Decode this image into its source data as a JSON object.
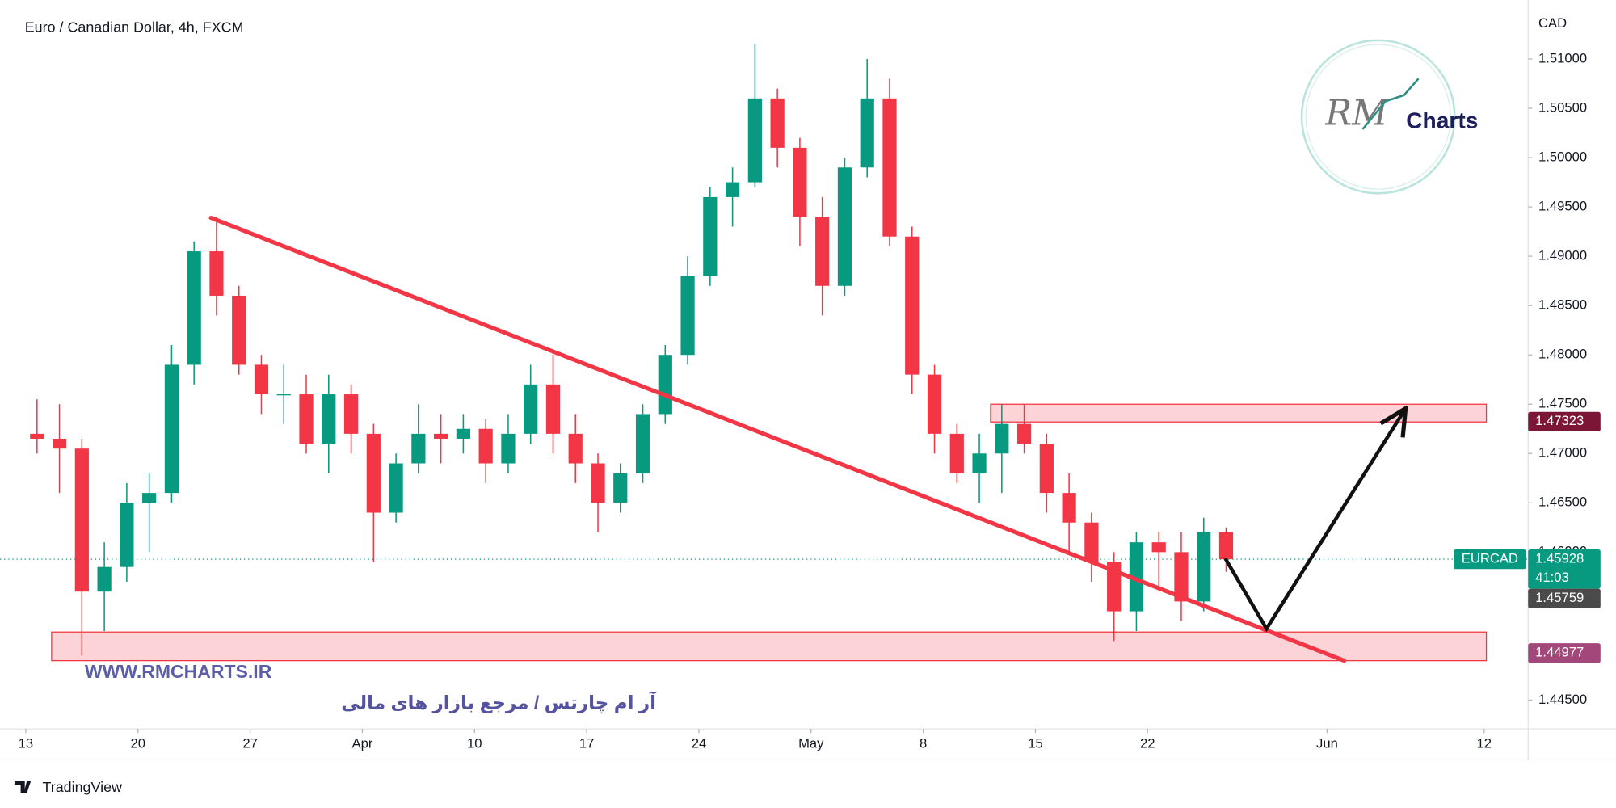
{
  "chart_data": {
    "type": "candlestick",
    "title": "Euro / Canadian Dollar, 4h, FXCM",
    "currency": "CAD",
    "up_color": "#089981",
    "down_color": "#f23645",
    "grid": false,
    "x": [
      0.5,
      1.5,
      2.5,
      3.5,
      4.5,
      5.5,
      6.5,
      7.5,
      8.5,
      9.5,
      10.5,
      11.5,
      12.5,
      13.5,
      14.5,
      15.5,
      16.5,
      17.5,
      18.5,
      19.5,
      20.5,
      21.5,
      22.5,
      23.5,
      24.5,
      25.5,
      26.5,
      27.5,
      28.5,
      29.5,
      30.5,
      31.5,
      32.5,
      33.5,
      34.5,
      35.5,
      36.5,
      37.5,
      38.5,
      39.5,
      40.5,
      41.5,
      42.5,
      43.5,
      44.5,
      45.5,
      46.5,
      47.5,
      48.5,
      49.5,
      50.5,
      51.5,
      52.5,
      53.5
    ],
    "open": [
      1.472,
      1.4715,
      1.4705,
      1.456,
      1.4585,
      1.465,
      1.466,
      1.479,
      1.4905,
      1.486,
      1.479,
      1.476,
      1.476,
      1.471,
      1.476,
      1.472,
      1.464,
      1.469,
      1.472,
      1.4715,
      1.4725,
      1.469,
      1.472,
      1.477,
      1.472,
      1.469,
      1.465,
      1.468,
      1.474,
      1.48,
      1.488,
      1.496,
      1.4975,
      1.506,
      1.501,
      1.494,
      1.487,
      1.499,
      1.506,
      1.492,
      1.478,
      1.472,
      1.468,
      1.47,
      1.473,
      1.471,
      1.466,
      1.463,
      1.459,
      1.454,
      1.461,
      1.46,
      1.455,
      1.462
    ],
    "high": [
      1.4755,
      1.475,
      1.4715,
      1.461,
      1.467,
      1.468,
      1.481,
      1.4915,
      1.494,
      1.487,
      1.48,
      1.479,
      1.478,
      1.478,
      1.477,
      1.473,
      1.47,
      1.475,
      1.474,
      1.474,
      1.4735,
      1.474,
      1.479,
      1.48,
      1.474,
      1.47,
      1.469,
      1.475,
      1.481,
      1.49,
      1.497,
      1.499,
      1.5115,
      1.507,
      1.502,
      1.496,
      1.5,
      1.51,
      1.508,
      1.493,
      1.479,
      1.473,
      1.472,
      1.475,
      1.475,
      1.472,
      1.468,
      1.464,
      1.46,
      1.462,
      1.462,
      1.462,
      1.4635,
      1.4625
    ],
    "low": [
      1.47,
      1.466,
      1.4495,
      1.452,
      1.457,
      1.46,
      1.465,
      1.477,
      1.484,
      1.478,
      1.474,
      1.473,
      1.47,
      1.468,
      1.47,
      1.459,
      1.463,
      1.468,
      1.469,
      1.47,
      1.467,
      1.468,
      1.471,
      1.47,
      1.467,
      1.462,
      1.464,
      1.467,
      1.473,
      1.479,
      1.487,
      1.493,
      1.497,
      1.499,
      1.491,
      1.484,
      1.486,
      1.498,
      1.491,
      1.476,
      1.47,
      1.467,
      1.465,
      1.466,
      1.47,
      1.464,
      1.46,
      1.457,
      1.451,
      1.452,
      1.456,
      1.453,
      1.454,
      1.458
    ],
    "close": [
      1.4715,
      1.4705,
      1.456,
      1.4585,
      1.465,
      1.466,
      1.479,
      1.4905,
      1.486,
      1.479,
      1.476,
      1.476,
      1.471,
      1.476,
      1.472,
      1.464,
      1.469,
      1.472,
      1.4715,
      1.4725,
      1.469,
      1.472,
      1.477,
      1.472,
      1.469,
      1.465,
      1.468,
      1.474,
      1.48,
      1.488,
      1.496,
      1.4975,
      1.506,
      1.501,
      1.494,
      1.487,
      1.499,
      1.506,
      1.492,
      1.478,
      1.472,
      1.468,
      1.47,
      1.473,
      1.471,
      1.466,
      1.463,
      1.459,
      1.454,
      1.461,
      1.46,
      1.455,
      1.462,
      1.45928
    ],
    "xlim": [
      -1.15,
      66.96
    ],
    "ylim": [
      1.44208,
      1.51598
    ],
    "xticks": [
      {
        "value": 0,
        "label": "13"
      },
      {
        "value": 5,
        "label": "20"
      },
      {
        "value": 10,
        "label": "27"
      },
      {
        "value": 15,
        "label": "Apr"
      },
      {
        "value": 20,
        "label": "10"
      },
      {
        "value": 25,
        "label": "17"
      },
      {
        "value": 30,
        "label": "24"
      },
      {
        "value": 35,
        "label": "May"
      },
      {
        "value": 40,
        "label": "8"
      },
      {
        "value": 45,
        "label": "15"
      },
      {
        "value": 50,
        "label": "22"
      },
      {
        "value": 58,
        "label": "Jun"
      },
      {
        "value": 65,
        "label": "12"
      }
    ],
    "yticks": [
      {
        "value": 1.51,
        "label": "1.51000"
      },
      {
        "value": 1.505,
        "label": "1.50500"
      },
      {
        "value": 1.5,
        "label": "1.50000"
      },
      {
        "value": 1.495,
        "label": "1.49500"
      },
      {
        "value": 1.49,
        "label": "1.49000"
      },
      {
        "value": 1.485,
        "label": "1.48500"
      },
      {
        "value": 1.48,
        "label": "1.48000"
      },
      {
        "value": 1.475,
        "label": "1.47500"
      },
      {
        "value": 1.47,
        "label": "1.47000"
      },
      {
        "value": 1.465,
        "label": "1.46500"
      },
      {
        "value": 1.46,
        "label": "1.46000"
      },
      {
        "value": 1.455,
        "label": "1.45500"
      },
      {
        "value": 1.45,
        "label": "1.45000"
      },
      {
        "value": 1.445,
        "label": "1.44500"
      }
    ],
    "price_labels": [
      {
        "value": 1.47323,
        "color": "#7b1636"
      },
      {
        "symbol": "EURCAD",
        "value": 1.45928,
        "countdown": "41:03",
        "color": "#089981"
      },
      {
        "value": 1.45759,
        "color": "#4a4a4a"
      },
      {
        "value": 1.44977,
        "color": "#a2477a"
      }
    ],
    "trendline": {
      "color": "#f23645",
      "x": [
        8.25,
        58.76
      ],
      "y": [
        1.4939,
        1.449
      ]
    },
    "zones": [
      {
        "x": [
          43.0,
          65.1
        ],
        "y": [
          1.4732,
          1.475
        ],
        "color": "#f23645"
      },
      {
        "x": [
          1.15,
          65.1
        ],
        "y": [
          1.449,
          1.4519
        ],
        "color": "#f23645"
      }
    ],
    "projection": {
      "color": "#111111",
      "x": [
        53.46,
        55.3,
        61.5
      ],
      "y": [
        1.45937,
        1.45224,
        1.47457
      ]
    }
  },
  "watermark": {
    "site": "WWW.RMCHARTS.IR",
    "tagline": "آر ام چارتس / مرجع بازار های مالی",
    "logo_script": "RM",
    "logo_word": "Charts"
  },
  "footer": {
    "brand": "TradingView"
  }
}
